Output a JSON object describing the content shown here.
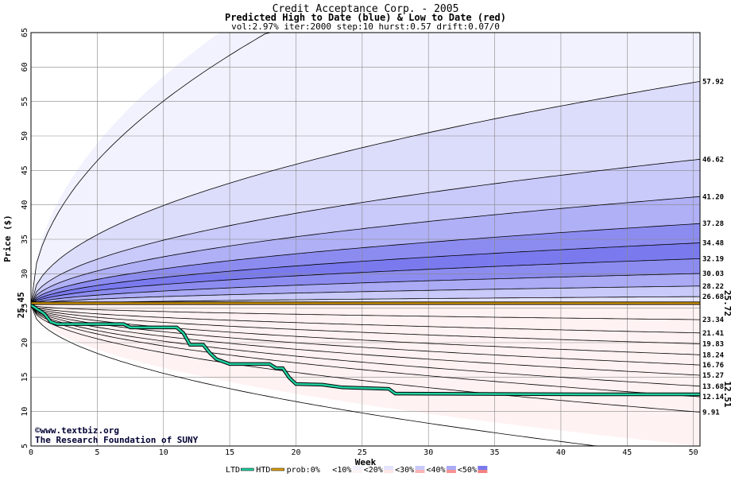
{
  "chart_data": {
    "type": "area",
    "title": "Credit Acceptance Corp. - 2005",
    "subtitle": "Predicted High to Date (blue) &  Low to Date (red)",
    "params": "vol:2.97% iter:2000 step:10 hurst:0.57 drift:0.07/0",
    "xlabel": "Week",
    "ylabel": "Price ($)",
    "xlim": [
      0,
      50.5
    ],
    "ylim": [
      5,
      65
    ],
    "xticks": [
      0,
      5,
      10,
      15,
      20,
      25,
      30,
      35,
      40,
      45,
      50
    ],
    "yticks": [
      5,
      10,
      15,
      20,
      25,
      30,
      35,
      40,
      45,
      50,
      55,
      60,
      65
    ],
    "grid": true,
    "start_price": 25.45,
    "start_label": "25.45",
    "high_bands": [
      {
        "end": 100,
        "label": "",
        "fill": "#f2f2ff"
      },
      {
        "end": 57.92,
        "label": "57.92",
        "fill": "#dcdcfb"
      },
      {
        "end": 46.62,
        "label": "46.62",
        "fill": "#c9c9fa"
      },
      {
        "end": 41.2,
        "label": "41.20",
        "fill": "#b0b0f6"
      },
      {
        "end": 37.28,
        "label": "37.28",
        "fill": "#8c8cf0"
      },
      {
        "end": 34.48,
        "label": "34.48",
        "fill": "#7a7aee"
      },
      {
        "end": 32.19,
        "label": "32.19",
        "fill": "#8c8cf0"
      },
      {
        "end": 30.03,
        "label": "30.03",
        "fill": "#aaaaf5"
      },
      {
        "end": 28.22,
        "label": "28.22",
        "fill": "#c9c9fa"
      },
      {
        "end": 26.68,
        "label": "26.68",
        "fill": "#e4e4fd"
      }
    ],
    "low_bands": [
      {
        "end": 23.34,
        "label": "23.34",
        "fill": "#fde6e6"
      },
      {
        "end": 21.41,
        "label": "21.41",
        "fill": "#fbcccc"
      },
      {
        "end": 19.83,
        "label": "19.83",
        "fill": "#f9b4b4"
      },
      {
        "end": 18.24,
        "label": "18.24",
        "fill": "#f79090"
      },
      {
        "end": 16.76,
        "label": "16.76",
        "fill": "#f58080"
      },
      {
        "end": 15.27,
        "label": "15.27",
        "fill": "#f79090"
      },
      {
        "end": 13.68,
        "label": "13.68",
        "fill": "#f9b4b4"
      },
      {
        "end": 12.14,
        "label": "12.14",
        "fill": "#fbcccc"
      },
      {
        "end": 9.91,
        "label": "9.91",
        "fill": "#fde6e6"
      },
      {
        "end": 5.0,
        "label": "",
        "fill": "#fff2f2"
      }
    ],
    "prob_line": {
      "value": 25.72,
      "label": "25.72",
      "color": "#e0a000"
    },
    "htd_series": {
      "name": "HTD",
      "color": "#e0a000",
      "x": [
        0,
        50.5
      ],
      "y": [
        25.72,
        25.72
      ]
    },
    "ltd_series": {
      "name": "LTD",
      "color": "#20d0a0",
      "final_label": "12.51",
      "x": [
        0,
        1,
        1.5,
        2,
        7,
        7.5,
        11,
        11.5,
        12,
        13,
        13.5,
        14,
        15,
        18,
        18.5,
        19,
        19.5,
        20,
        22,
        23.5,
        27,
        27.5,
        42,
        50.5
      ],
      "y": [
        25.45,
        24.2,
        23.0,
        22.7,
        22.7,
        22.2,
        22.2,
        21.4,
        19.7,
        19.7,
        18.5,
        17.6,
        16.9,
        16.9,
        16.3,
        16.3,
        14.9,
        14.0,
        13.9,
        13.5,
        13.3,
        12.6,
        12.5,
        12.5
      ]
    },
    "colors": {
      "grid": "#888888",
      "axis": "#000000",
      "band_line": "#000000",
      "high_label": "#000000",
      "start_label": "#006600",
      "prob_label": "#b08000",
      "ltd_label": "#00a070"
    }
  },
  "credits": {
    "site": "©www.textbiz.org",
    "org": "The Research Foundation of SUNY"
  },
  "legend": {
    "items": [
      {
        "label": "LTD",
        "swatch": "#20d0a0",
        "kind": "line"
      },
      {
        "label": "HTD",
        "swatch": "#e0a000",
        "kind": "line"
      },
      {
        "label": "prob:0%",
        "swatch": "#ffffff",
        "kind": "box"
      },
      {
        "label": "<10%",
        "swatch": "#fff2f2",
        "swatch2": "#f2f2ff",
        "kind": "box"
      },
      {
        "label": "<20%",
        "swatch": "#fde6e6",
        "swatch2": "#e4e4fd",
        "kind": "box"
      },
      {
        "label": "<30%",
        "swatch": "#f9b4b4",
        "swatch2": "#c9c9fa",
        "kind": "box"
      },
      {
        "label": "<40%",
        "swatch": "#f79090",
        "swatch2": "#aaaaf5",
        "kind": "box"
      },
      {
        "label": "<50%",
        "swatch": "#f58080",
        "swatch2": "#7a7aee",
        "kind": "box"
      }
    ]
  }
}
